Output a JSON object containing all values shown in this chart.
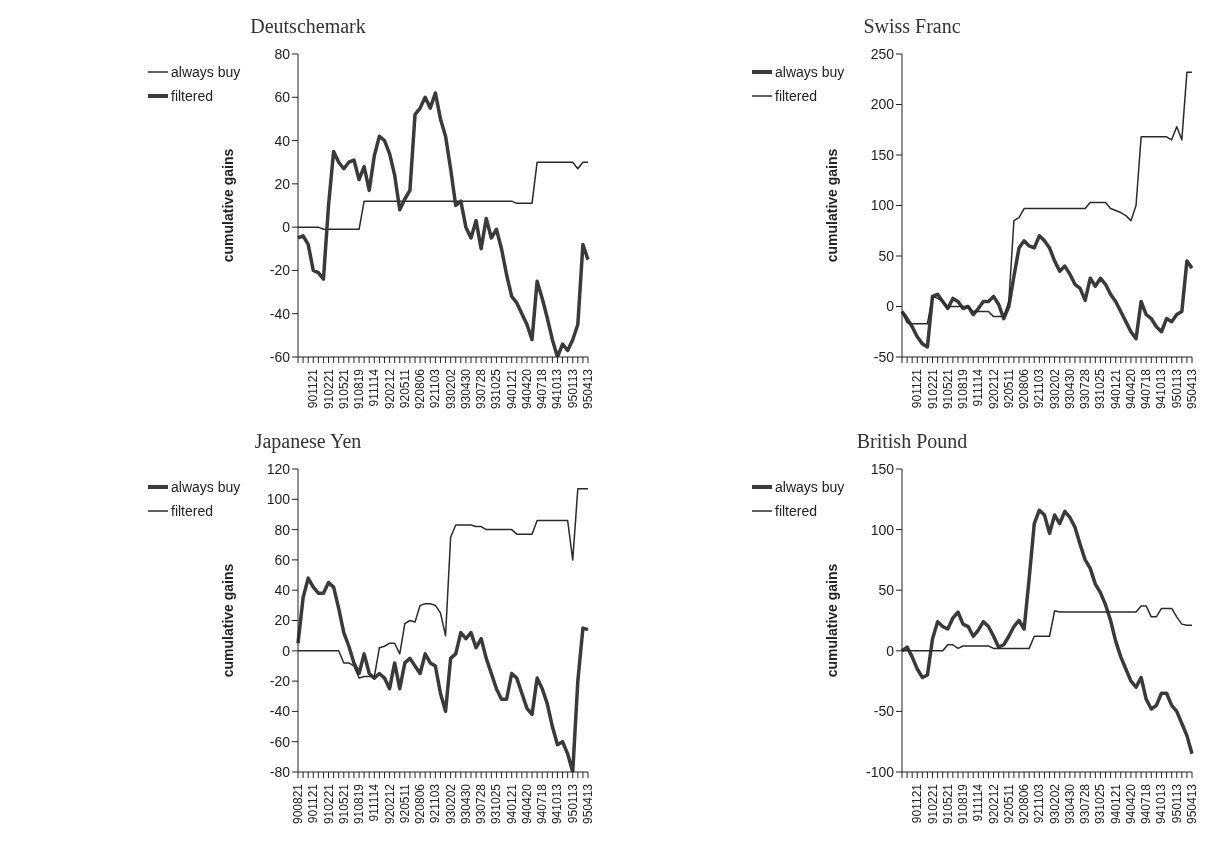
{
  "chart_data": [
    {
      "type": "line",
      "title": "Deutschemark",
      "ylabel": "cumulative gains",
      "legend": "top left",
      "ylim": [
        -60,
        80
      ],
      "yticks": [
        -60,
        -40,
        -20,
        0,
        20,
        40,
        60,
        80
      ],
      "categories": [
        null,
        null,
        null,
        "901121",
        null,
        null,
        "910221",
        null,
        null,
        "910521",
        null,
        null,
        "910819",
        null,
        null,
        "911114",
        null,
        null,
        "920212",
        null,
        null,
        "920511",
        null,
        null,
        "920806",
        null,
        null,
        "921103",
        null,
        null,
        "930202",
        null,
        null,
        "930430",
        null,
        null,
        "930728",
        null,
        null,
        "931025",
        null,
        null,
        "940121",
        null,
        null,
        "940420",
        null,
        null,
        "940718",
        null,
        null,
        "941013",
        null,
        null,
        "950113",
        null,
        null,
        "950413"
      ],
      "series": [
        {
          "name": "always buy",
          "color": "#2a2a2a",
          "values": [
            0,
            0,
            0,
            0,
            0,
            -1,
            -1,
            -1,
            -1,
            -1,
            -1,
            -1,
            -1,
            12,
            12,
            12,
            12,
            12,
            12,
            12,
            12,
            12,
            12,
            12,
            12,
            12,
            12,
            12,
            12,
            12,
            12,
            12,
            12,
            12,
            12,
            12,
            12,
            12,
            12,
            12,
            12,
            12,
            12,
            11,
            11,
            11,
            11,
            30,
            30,
            30,
            30,
            30,
            30,
            30,
            30,
            27,
            30,
            30
          ]
        },
        {
          "name": "filtered",
          "color": "#3a3a3a",
          "values": [
            -5,
            -4,
            -8,
            -20,
            -21,
            -24,
            10,
            35,
            30,
            27,
            30,
            31,
            22,
            28,
            17,
            33,
            42,
            40,
            34,
            24,
            8,
            13,
            17,
            52,
            55,
            60,
            55,
            62,
            50,
            42,
            27,
            10,
            12,
            0,
            -5,
            3,
            -10,
            4,
            -5,
            -1,
            -10,
            -22,
            -32,
            -35,
            -40,
            -45,
            -52,
            -25,
            -33,
            -42,
            -52,
            -60,
            -54,
            -57,
            -52,
            -45,
            -8,
            -15
          ]
        }
      ]
    },
    {
      "type": "line",
      "title": "Swiss Franc",
      "ylabel": "cumulative gains",
      "legend": "top left",
      "ylim": [
        -50,
        250
      ],
      "yticks": [
        -50,
        0,
        50,
        100,
        150,
        200,
        250
      ],
      "categories": [
        null,
        null,
        null,
        "901121",
        null,
        null,
        "910221",
        null,
        null,
        "910521",
        null,
        null,
        "910819",
        null,
        null,
        "911114",
        null,
        null,
        "920212",
        null,
        null,
        "920511",
        null,
        null,
        "920806",
        null,
        null,
        "921103",
        null,
        null,
        "930202",
        null,
        null,
        "930430",
        null,
        null,
        "930728",
        null,
        null,
        "931025",
        null,
        null,
        "940121",
        null,
        null,
        "940420",
        null,
        null,
        "940718",
        null,
        null,
        "941013",
        null,
        null,
        "950113",
        null,
        null,
        "950413"
      ],
      "series": [
        {
          "name": "always buy",
          "color": "#3a3a3a",
          "values": [
            -5,
            -12,
            -20,
            -30,
            -37,
            -40,
            10,
            12,
            5,
            -2,
            8,
            5,
            -2,
            0,
            -8,
            -2,
            5,
            5,
            10,
            2,
            -12,
            0,
            30,
            58,
            65,
            60,
            58,
            70,
            65,
            58,
            45,
            35,
            40,
            32,
            22,
            18,
            6,
            28,
            20,
            28,
            22,
            12,
            5,
            -5,
            -15,
            -25,
            -32,
            5,
            -8,
            -12,
            -20,
            -25,
            -12,
            -15,
            -8,
            -5,
            45,
            38
          ]
        },
        {
          "name": "filtered",
          "color": "#2a2a2a",
          "values": [
            -5,
            -16,
            -17,
            -17,
            -17,
            -17,
            10,
            8,
            5,
            0,
            0,
            0,
            0,
            0,
            -5,
            -5,
            -5,
            -5,
            -10,
            -10,
            -10,
            5,
            85,
            88,
            97,
            97,
            97,
            97,
            97,
            97,
            97,
            97,
            97,
            97,
            97,
            97,
            97,
            103,
            103,
            103,
            103,
            97,
            95,
            93,
            90,
            85,
            100,
            168,
            168,
            168,
            168,
            168,
            168,
            165,
            178,
            165,
            232,
            232
          ]
        }
      ]
    },
    {
      "type": "line",
      "title": "Japanese Yen",
      "ylabel": "cumulative gains",
      "legend": "top left",
      "ylim": [
        -80,
        120
      ],
      "yticks": [
        -80,
        -60,
        -40,
        -20,
        0,
        20,
        40,
        60,
        80,
        100,
        120
      ],
      "categories": [
        "900821",
        null,
        null,
        "901121",
        null,
        null,
        "910221",
        null,
        null,
        "910521",
        null,
        null,
        "910819",
        null,
        null,
        "911114",
        null,
        null,
        "920212",
        null,
        null,
        "920511",
        null,
        null,
        "920806",
        null,
        null,
        "921103",
        null,
        null,
        "930202",
        null,
        null,
        "930430",
        null,
        null,
        "930728",
        null,
        null,
        "931025",
        null,
        null,
        "940121",
        null,
        null,
        "940420",
        null,
        null,
        "940718",
        null,
        null,
        "941013",
        null,
        null,
        "950113",
        null,
        null,
        "950413"
      ],
      "series": [
        {
          "name": "always buy",
          "color": "#3a3a3a",
          "values": [
            5,
            35,
            48,
            42,
            38,
            38,
            45,
            42,
            28,
            12,
            3,
            -8,
            -15,
            -2,
            -15,
            -18,
            -15,
            -18,
            -25,
            -8,
            -25,
            -8,
            -5,
            -10,
            -15,
            -2,
            -8,
            -10,
            -28,
            -40,
            -5,
            -2,
            12,
            8,
            12,
            2,
            8,
            -5,
            -15,
            -25,
            -32,
            -32,
            -15,
            -18,
            -28,
            -38,
            -42,
            -18,
            -25,
            -35,
            -50,
            -62,
            -60,
            -68,
            -80,
            -20,
            15,
            14
          ]
        },
        {
          "name": "filtered",
          "color": "#2a2a2a",
          "values": [
            0,
            0,
            0,
            0,
            0,
            0,
            0,
            0,
            0,
            -8,
            -8,
            -10,
            -18,
            -17,
            -17,
            -17,
            2,
            3,
            5,
            5,
            -2,
            18,
            20,
            19,
            30,
            31,
            31,
            30,
            25,
            10,
            75,
            83,
            83,
            83,
            83,
            82,
            82,
            80,
            80,
            80,
            80,
            80,
            80,
            77,
            77,
            77,
            77,
            86,
            86,
            86,
            86,
            86,
            86,
            86,
            60,
            107,
            107,
            107
          ]
        }
      ]
    },
    {
      "type": "line",
      "title": "British Pound",
      "ylabel": "cumulative gains",
      "legend": "top left",
      "ylim": [
        -100,
        150
      ],
      "yticks": [
        -100,
        -50,
        0,
        50,
        100,
        150
      ],
      "categories": [
        null,
        null,
        null,
        "901121",
        null,
        null,
        "910221",
        null,
        null,
        "910521",
        null,
        null,
        "910819",
        null,
        null,
        "911114",
        null,
        null,
        "920212",
        null,
        null,
        "920511",
        null,
        null,
        "920806",
        null,
        null,
        "921103",
        null,
        null,
        "930202",
        null,
        null,
        "930430",
        null,
        null,
        "930728",
        null,
        null,
        "931025",
        null,
        null,
        "940121",
        null,
        null,
        "940420",
        null,
        null,
        "940718",
        null,
        null,
        "941013",
        null,
        null,
        "950113",
        null,
        null,
        "950413"
      ],
      "series": [
        {
          "name": "always buy",
          "color": "#3a3a3a",
          "values": [
            0,
            3,
            -5,
            -15,
            -22,
            -20,
            10,
            24,
            20,
            18,
            27,
            32,
            22,
            20,
            12,
            17,
            24,
            20,
            12,
            3,
            5,
            12,
            20,
            25,
            18,
            60,
            105,
            116,
            112,
            97,
            112,
            105,
            115,
            110,
            102,
            88,
            75,
            68,
            55,
            48,
            38,
            25,
            8,
            -5,
            -15,
            -25,
            -30,
            -22,
            -40,
            -48,
            -45,
            -35,
            -35,
            -45,
            -50,
            -60,
            -70,
            -85
          ]
        },
        {
          "name": "filtered",
          "color": "#2a2a2a",
          "values": [
            0,
            0,
            0,
            0,
            0,
            0,
            0,
            0,
            0,
            5,
            5,
            2,
            4,
            4,
            4,
            4,
            4,
            4,
            2,
            2,
            2,
            2,
            2,
            2,
            2,
            2,
            12,
            12,
            12,
            12,
            33,
            32,
            32,
            32,
            32,
            32,
            32,
            32,
            32,
            32,
            32,
            32,
            32,
            32,
            32,
            32,
            32,
            37,
            37,
            28,
            28,
            35,
            35,
            35,
            28,
            22,
            21,
            21
          ]
        }
      ]
    }
  ]
}
